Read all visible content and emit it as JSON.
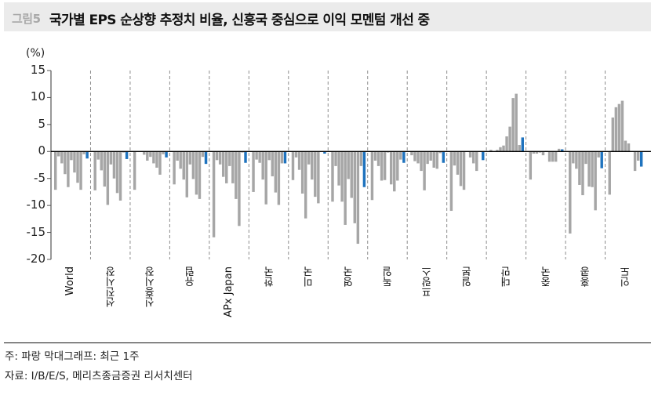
{
  "header": {
    "figure_label": "그림5",
    "title": "국가별 EPS 순상향 추정치 비율, 신흥국 중심으로 이익 모멘텀 개선 중"
  },
  "footer": {
    "note": "주: 파랑 막대그래프: 최근 1주",
    "source": "자료: I/B/E/S, 메리츠종금증권 리서치센터"
  },
  "colors": {
    "gray_bar": "#a6a6a6",
    "blue_bar": "#1f73be",
    "axis": "#000000",
    "separator": "#8c8c8c",
    "title_bg": "#ebebeb"
  },
  "chart_data": {
    "type": "bar",
    "title": "국가별 EPS 순상향 추정치 비율, 신흥국 중심으로 이익 모멘텀 개선 중",
    "ylabel": "(%)",
    "xlabel": "",
    "ylim": [
      -20,
      15
    ],
    "yticks": [
      15,
      10,
      5,
      0,
      -5,
      -10,
      -15,
      -20
    ],
    "grid": false,
    "legend": "주: 파랑 막대그래프: 최근 1주",
    "note": "Each region shows a sequence of weekly gray bars; the last (blue) bar is the most recent week",
    "categories": [
      "World",
      "선진시장",
      "신흥시장",
      "유럽",
      "APx Japan",
      "한국",
      "미국",
      "영국",
      "독일",
      "프랑스",
      "일본",
      "대만",
      "중국",
      "홍콩",
      "인도"
    ],
    "series": [
      {
        "name": "World",
        "values": [
          -7.1,
          -0.9,
          -2.2,
          -4.2,
          -6.6,
          -1.6,
          -3.9,
          -5.8,
          -7.1,
          -0.5,
          -1.3
        ]
      },
      {
        "name": "선진시장",
        "values": [
          -7.2,
          -1.5,
          -3.5,
          -6.5,
          -9.9,
          -2.4,
          -5.0,
          -7.7,
          -9.1,
          -0.2,
          -1.4
        ]
      },
      {
        "name": "신흥시장",
        "values": [
          -7.1,
          0.0,
          0.0,
          -0.6,
          -1.7,
          -1.0,
          -2.2,
          -3.0,
          -4.3,
          -0.5,
          -1.1
        ]
      },
      {
        "name": "유럽",
        "values": [
          -6.1,
          -1.7,
          -3.2,
          -5.2,
          -8.5,
          -2.4,
          -5.1,
          -8.0,
          -8.8,
          -1.0,
          -2.3
        ]
      },
      {
        "name": "APx Japan",
        "values": [
          -15.9,
          -1.6,
          -2.4,
          -4.7,
          -5.9,
          -2.7,
          -5.9,
          -8.8,
          -13.8,
          -0.2,
          -2.1
        ]
      },
      {
        "name": "한국",
        "values": [
          -7.5,
          -1.5,
          -2.1,
          -5.2,
          -9.8,
          -1.6,
          -4.6,
          -7.6,
          -9.9,
          -2.2,
          -2.2
        ]
      },
      {
        "name": "미국",
        "values": [
          -5.3,
          -1.1,
          -3.4,
          -7.8,
          -12.4,
          -2.4,
          -5.2,
          -8.4,
          -9.6,
          -0.1,
          -0.4
        ]
      },
      {
        "name": "영국",
        "values": [
          -9.3,
          -2.7,
          -6.3,
          -9.3,
          -13.6,
          -5.1,
          -8.6,
          -13.3,
          -17.1,
          -2.7,
          -6.6
        ]
      },
      {
        "name": "독일",
        "values": [
          -9.0,
          -1.7,
          -2.7,
          -5.4,
          -5.3,
          -0.2,
          -6.1,
          -7.4,
          -5.4,
          -1.5,
          -2.1
        ]
      },
      {
        "name": "프랑스",
        "values": [
          -0.7,
          -1.8,
          -2.2,
          -3.6,
          -7.2,
          -2.3,
          -1.7,
          -3.0,
          -3.2,
          -0.3,
          -2.1
        ]
      },
      {
        "name": "일본",
        "values": [
          -11.0,
          -2.6,
          -4.3,
          -6.4,
          -7.1,
          0.0,
          -1.1,
          -2.2,
          -3.6,
          0.0,
          -1.6
        ]
      },
      {
        "name": "대만",
        "values": [
          0.3,
          -0.1,
          0.3,
          0.8,
          1.1,
          2.8,
          4.6,
          9.9,
          10.7,
          1.2,
          2.6
        ]
      },
      {
        "name": "중국",
        "values": [
          -5.2,
          -0.4,
          -0.4,
          -0.2,
          -0.7,
          0.1,
          -1.9,
          -1.9,
          -1.9,
          0.5,
          0.4
        ]
      },
      {
        "name": "홍콩",
        "values": [
          -15.2,
          -2.2,
          -3.2,
          -6.2,
          -8.1,
          -2.3,
          -6.5,
          -6.6,
          -10.9,
          -1.1,
          -3.1
        ]
      },
      {
        "name": "인도",
        "values": [
          -8.0,
          6.3,
          8.2,
          8.8,
          9.4,
          2.0,
          1.5,
          0.0,
          -3.6,
          -1.7,
          -2.8
        ]
      }
    ]
  }
}
